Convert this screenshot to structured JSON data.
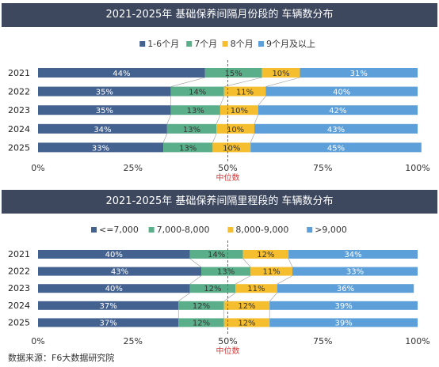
{
  "palette": {
    "s1": "#44628f",
    "s2": "#5aaf8a",
    "s3": "#f4be2e",
    "s4": "#5d9fd8",
    "median_line": "#e03b3b",
    "median_text": "#d73a3a",
    "title_bg": "#3d475e"
  },
  "median_label": "中位数",
  "source": "数据来源：F6大数据研究院",
  "chart_data": [
    {
      "type": "bar",
      "stacked": true,
      "orientation": "horizontal",
      "title": "2021-2025年 基础保养间隔月份段的 车辆数分布",
      "categories": [
        "2021",
        "2022",
        "2023",
        "2024",
        "2025"
      ],
      "series": [
        {
          "name": "1-6个月",
          "values": [
            44,
            35,
            35,
            34,
            33
          ]
        },
        {
          "name": "7个月",
          "values": [
            15,
            14,
            13,
            13,
            13
          ]
        },
        {
          "name": "8个月",
          "values": [
            10,
            11,
            10,
            10,
            10
          ]
        },
        {
          "name": "9个月及以上",
          "values": [
            31,
            40,
            42,
            43,
            45
          ]
        }
      ],
      "xlim": [
        0,
        100
      ],
      "xticks": [
        "0%",
        "25%",
        "50%",
        "75%",
        "100%"
      ],
      "median": 50,
      "legend": "top-center",
      "grid": false
    },
    {
      "type": "bar",
      "stacked": true,
      "orientation": "horizontal",
      "title": "2021-2025年 基础保养间隔里程段的 车辆数分布",
      "categories": [
        "2021",
        "2022",
        "2023",
        "2024",
        "2025"
      ],
      "series": [
        {
          "name": "<=7,000",
          "values": [
            40,
            43,
            40,
            37,
            37
          ]
        },
        {
          "name": "7,000-8,000",
          "values": [
            14,
            13,
            12,
            12,
            12
          ]
        },
        {
          "name": "8,000-9,000",
          "values": [
            12,
            11,
            11,
            12,
            12
          ]
        },
        {
          "name": ">9,000",
          "values": [
            34,
            33,
            36,
            39,
            39
          ]
        }
      ],
      "xlim": [
        0,
        100
      ],
      "xticks": [
        "0%",
        "25%",
        "50%",
        "75%",
        "100%"
      ],
      "median": 50,
      "legend": "top-center",
      "grid": false
    }
  ]
}
